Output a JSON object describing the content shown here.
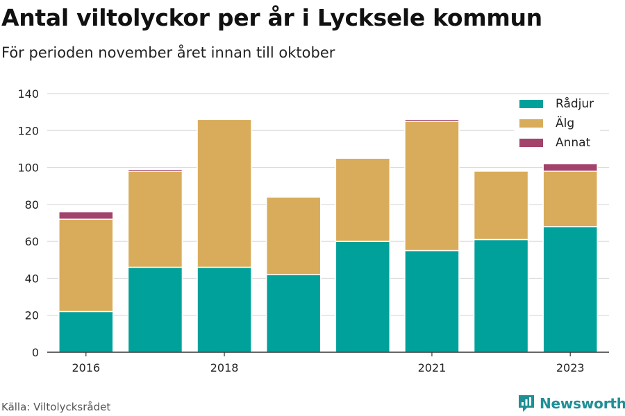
{
  "title": "Antal viltolyckor per år i Lycksele kommun",
  "subtitle": "För perioden november året innan till oktober",
  "source": "Källa: Viltolycksrådet",
  "brand": "Newsworthy",
  "colors": {
    "radjur": "#00a19a",
    "alg": "#d9ac5b",
    "annat": "#a3426b",
    "brand": "#1f8f96"
  },
  "chart_data": {
    "type": "bar",
    "stacked": true,
    "categories": [
      "2016",
      "2017",
      "2018",
      "2019",
      "2020",
      "2021",
      "2022",
      "2023"
    ],
    "tick_labels": [
      "2016",
      "",
      "2018",
      "",
      "",
      "2021",
      "",
      "2023"
    ],
    "series": [
      {
        "name": "Rådjur",
        "color": "#00a19a",
        "values": [
          22,
          46,
          46,
          42,
          60,
          55,
          61,
          68
        ]
      },
      {
        "name": "Älg",
        "color": "#d9ac5b",
        "values": [
          50,
          52,
          80,
          42,
          45,
          70,
          37,
          30
        ]
      },
      {
        "name": "Annat",
        "color": "#a3426b",
        "values": [
          4,
          1,
          0,
          0,
          0,
          1,
          0,
          4
        ]
      }
    ],
    "ylim": [
      0,
      140
    ],
    "yticks": [
      0,
      20,
      40,
      60,
      80,
      100,
      120,
      140
    ],
    "grid": true,
    "legend_position": "top-right"
  }
}
